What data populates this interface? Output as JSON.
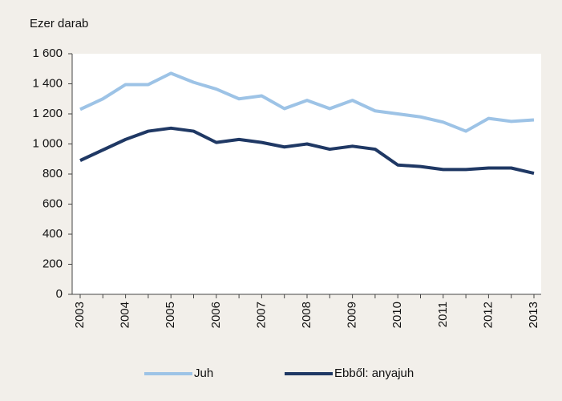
{
  "chart_data": {
    "type": "line",
    "ylabel": "Ezer darab",
    "categories": [
      "2003",
      null,
      "2004",
      null,
      "2005",
      null,
      "2006",
      null,
      "2007",
      null,
      "2008",
      null,
      "2009",
      null,
      "2010",
      null,
      "2011",
      null,
      "2012",
      null,
      "2013"
    ],
    "series": [
      {
        "name": "Juh",
        "color": "#9dc3e6",
        "values": [
          1230,
          1300,
          1395,
          1395,
          1470,
          1410,
          1365,
          1300,
          1320,
          1235,
          1290,
          1235,
          1290,
          1220,
          1200,
          1180,
          1145,
          1085,
          1170,
          1150,
          1160
        ]
      },
      {
        "name": "Ebből: anyajuh",
        "color": "#1f3864",
        "values": [
          890,
          960,
          1030,
          1085,
          1105,
          1085,
          1010,
          1030,
          1010,
          980,
          1000,
          965,
          985,
          965,
          860,
          850,
          830,
          830,
          840,
          840,
          805
        ]
      }
    ],
    "ylim": [
      0,
      1600
    ],
    "yticks": [
      0,
      200,
      400,
      600,
      800,
      {
        "value": 1000,
        "label": "1 000"
      },
      {
        "value": 1200,
        "label": "1 200"
      },
      {
        "value": 1400,
        "label": "1 400"
      },
      {
        "value": 1600,
        "label": "1 600"
      }
    ],
    "legend": "bottom"
  }
}
